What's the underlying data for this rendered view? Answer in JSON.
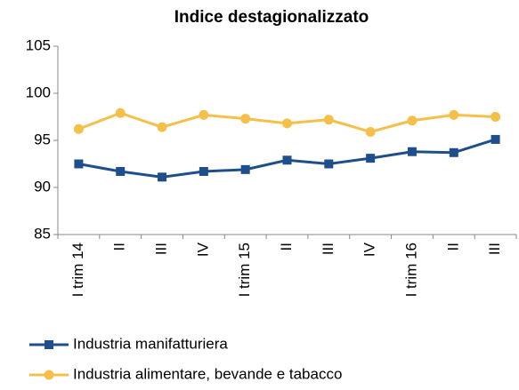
{
  "chart_data": {
    "type": "line",
    "title": "Indice destagionalizzato",
    "categories": [
      "I trim 14",
      "II",
      "III",
      "IV",
      "I trim 15",
      "II",
      "III",
      "IV",
      "I trim 16",
      "II",
      "III"
    ],
    "series": [
      {
        "name": "Industria manifatturiera",
        "color": "#1f4e8c",
        "values": [
          92.5,
          91.7,
          91.1,
          91.7,
          91.9,
          92.9,
          92.5,
          93.1,
          93.8,
          93.7,
          95.1
        ]
      },
      {
        "name": "Industria alimentare, bevande e tabacco",
        "color": "#f5c04a",
        "values": [
          96.2,
          97.9,
          96.4,
          97.7,
          97.3,
          96.8,
          97.2,
          95.9,
          97.1,
          97.7,
          97.5
        ]
      }
    ],
    "ylim": [
      85,
      105
    ],
    "yticks": [
      85,
      90,
      95,
      100,
      105
    ],
    "grid": false,
    "legend": "bottom"
  }
}
